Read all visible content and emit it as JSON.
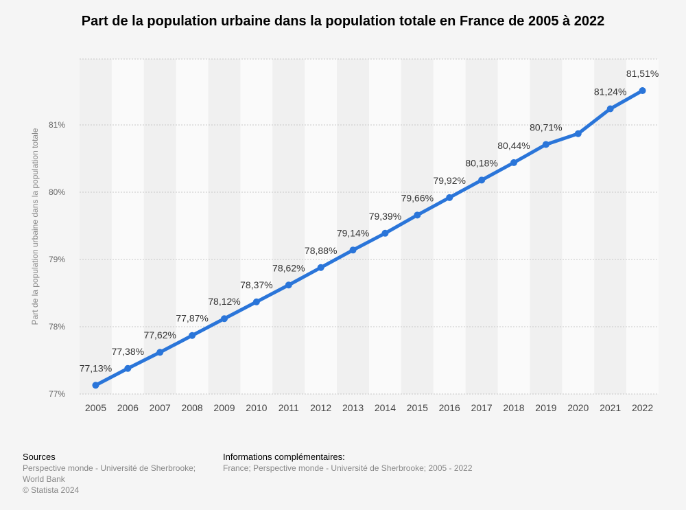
{
  "chart_data": {
    "type": "line",
    "title": "Part de la population urbaine dans la population totale en France de 2005 à 2022",
    "ylabel": "Part de la population urbaine dans la population totale",
    "xlabel": "",
    "ylim": [
      77,
      81.98
    ],
    "yticks": [
      "77%",
      "78%",
      "79%",
      "80%",
      "81%"
    ],
    "yticks_values": [
      77,
      78,
      79,
      80,
      81
    ],
    "categories": [
      "2005",
      "2006",
      "2007",
      "2008",
      "2009",
      "2010",
      "2011",
      "2012",
      "2013",
      "2014",
      "2015",
      "2016",
      "2017",
      "2018",
      "2019",
      "2020",
      "2021",
      "2022"
    ],
    "values": [
      77.13,
      77.38,
      77.62,
      77.87,
      78.12,
      78.37,
      78.62,
      78.88,
      79.14,
      79.39,
      79.66,
      79.92,
      80.18,
      80.44,
      80.71,
      80.87,
      81.24,
      81.51
    ],
    "data_labels": [
      "77,13%",
      "77,38%",
      "77,62%",
      "77,87%",
      "78,12%",
      "78,37%",
      "78,62%",
      "78,88%",
      "79,14%",
      "79,39%",
      "79,66%",
      "79,92%",
      "80,18%",
      "80,44%",
      "80,71%",
      "",
      "81,24%",
      "81,51%"
    ],
    "line_color": "#2a75d9",
    "grid": true,
    "legend": "none"
  },
  "footer": {
    "sources_head": "Sources",
    "sources_line1": "Perspective monde - Université de Sherbrooke;",
    "sources_line2": "World Bank",
    "sources_line3": "© Statista 2024",
    "info_head": "Informations complémentaires:",
    "info_line1": "France; Perspective monde - Université de Sherbrooke; 2005 - 2022"
  }
}
